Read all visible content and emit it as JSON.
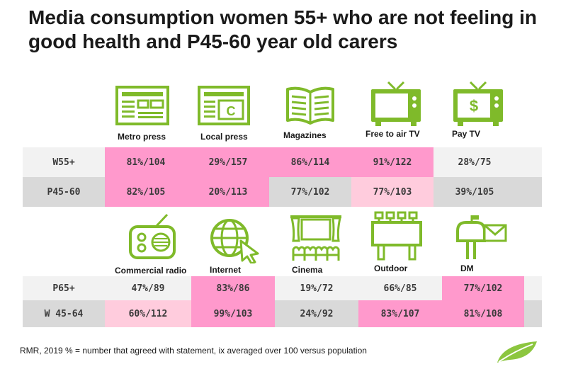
{
  "title": "Media consumption women 55+ who are not feeling in good health and P45-60 year old carers",
  "top": {
    "columns": [
      "Metro press",
      "Local press",
      "Magazines",
      "Free to air TV",
      "Pay TV"
    ],
    "icons": [
      "newspaper-icon",
      "local-newspaper-icon",
      "magazine-icon",
      "television-icon",
      "pay-tv-icon"
    ],
    "rows": [
      {
        "label": "W55+",
        "values": [
          "81%/104",
          "29%/157",
          "86%/114",
          "91%/122",
          "28%/75"
        ]
      },
      {
        "label": "P45-60",
        "values": [
          "82%/105",
          "20%/113",
          "77%/102",
          "77%/103",
          "39%/105"
        ]
      }
    ]
  },
  "bottom": {
    "columns": [
      "Commercial radio",
      "Internet",
      "Cinema",
      "Outdoor",
      "DM"
    ],
    "icons": [
      "radio-icon",
      "globe-cursor-icon",
      "cinema-icon",
      "billboard-icon",
      "mailbox-icon"
    ],
    "rows": [
      {
        "label": "P65+",
        "values": [
          "47%/89",
          "83%/86",
          "19%/72",
          "66%/85",
          "77%/102"
        ]
      },
      {
        "label": "W 45-64",
        "values": [
          "60%/112",
          "99%/103",
          "24%/92",
          "83%/107",
          "81%/108"
        ]
      }
    ]
  },
  "icon_glyphs": {
    "pay_tv": "$",
    "local_press": "C"
  },
  "footer": "RMR, 2019 % = number that agreed with statement, ix averaged over 100 versus population",
  "colors": {
    "accent_green": "#7fba2a",
    "pink_strong": "#ff99cc",
    "pink_light": "#ffccdd",
    "grey_band": "#d9d9d9",
    "light_band": "#f2f2f2"
  }
}
